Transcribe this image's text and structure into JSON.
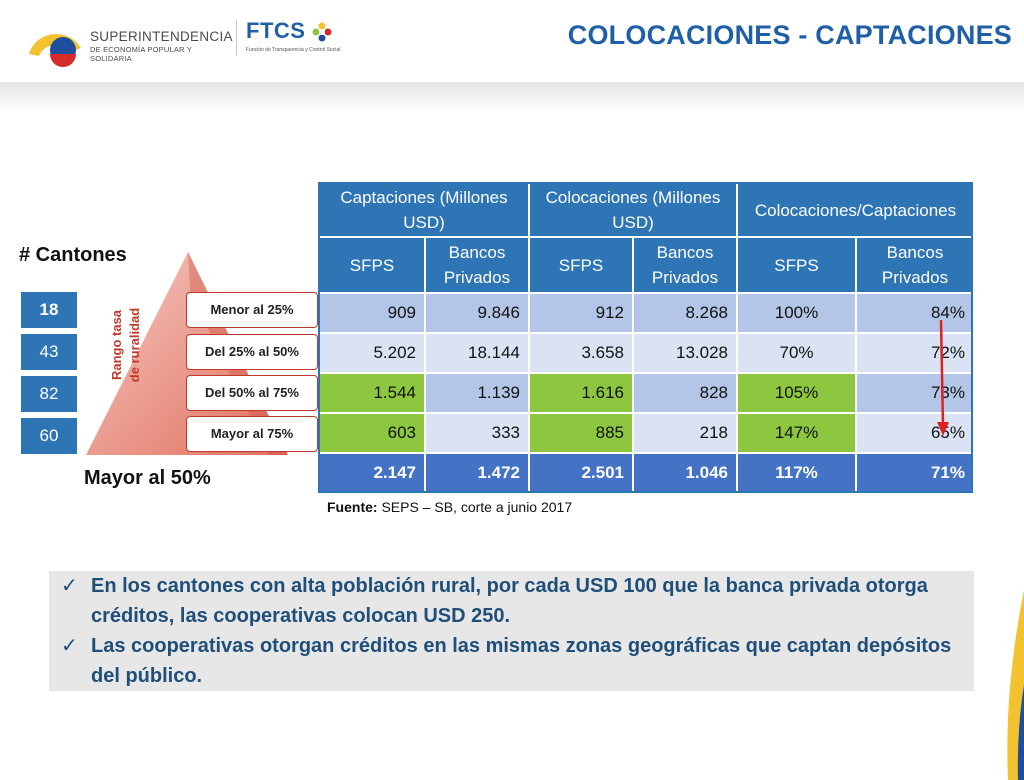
{
  "header": {
    "title": "COLOCACIONES - CAPTACIONES",
    "logo1_line1": "SUPERINTENDENCIA",
    "logo1_line2": "DE ECONOMÍA POPULAR Y SOLIDARIA",
    "logo2_name": "FTCS",
    "logo2_sub": "Función de Transparencia y Control Social"
  },
  "cantones": {
    "title": "# Cantones",
    "values": [
      "18",
      "43",
      "82",
      "60"
    ],
    "footer": "Mayor al 50%"
  },
  "rango": {
    "label_line1": "Rango tasa",
    "label_line2": "de ruralidad",
    "items": [
      "Menor al 25%",
      "Del 25% al 50%",
      "Del 50% al 75%",
      "Mayor al 75%"
    ]
  },
  "table": {
    "group_headers": [
      "Captaciones (Millones USD)",
      "Colocaciones (Millones USD)",
      "Colocaciones/Captaciones"
    ],
    "sub_headers": [
      "SFPS",
      "Bancos Privados",
      "SFPS",
      "Bancos Privados",
      "SFPS",
      "Bancos Privados"
    ],
    "rows": [
      [
        "909",
        "9.846",
        "912",
        "8.268",
        "100%",
        "84%"
      ],
      [
        "5.202",
        "18.144",
        "3.658",
        "13.028",
        "70%",
        "72%"
      ],
      [
        "1.544",
        "1.139",
        "1.616",
        "828",
        "105%",
        "73%"
      ],
      [
        "603",
        "333",
        "885",
        "218",
        "147%",
        "65%"
      ]
    ],
    "total": [
      "2.147",
      "1.472",
      "2.501",
      "1.046",
      "117%",
      "71%"
    ]
  },
  "fuente": {
    "label": "Fuente:",
    "text": " SEPS – SB, corte a junio 2017"
  },
  "notes": [
    "En los cantones con alta población rural, por cada  USD 100 que la banca privada otorga créditos, las cooperativas colocan USD 250.",
    "Las cooperativas otorgan créditos en las mismas zonas geográficas que captan depósitos del público."
  ],
  "colors": {
    "accent": "#2e75b6",
    "title": "#1f5fa8",
    "green": "#8dc63f",
    "arrow": "#e02020"
  }
}
